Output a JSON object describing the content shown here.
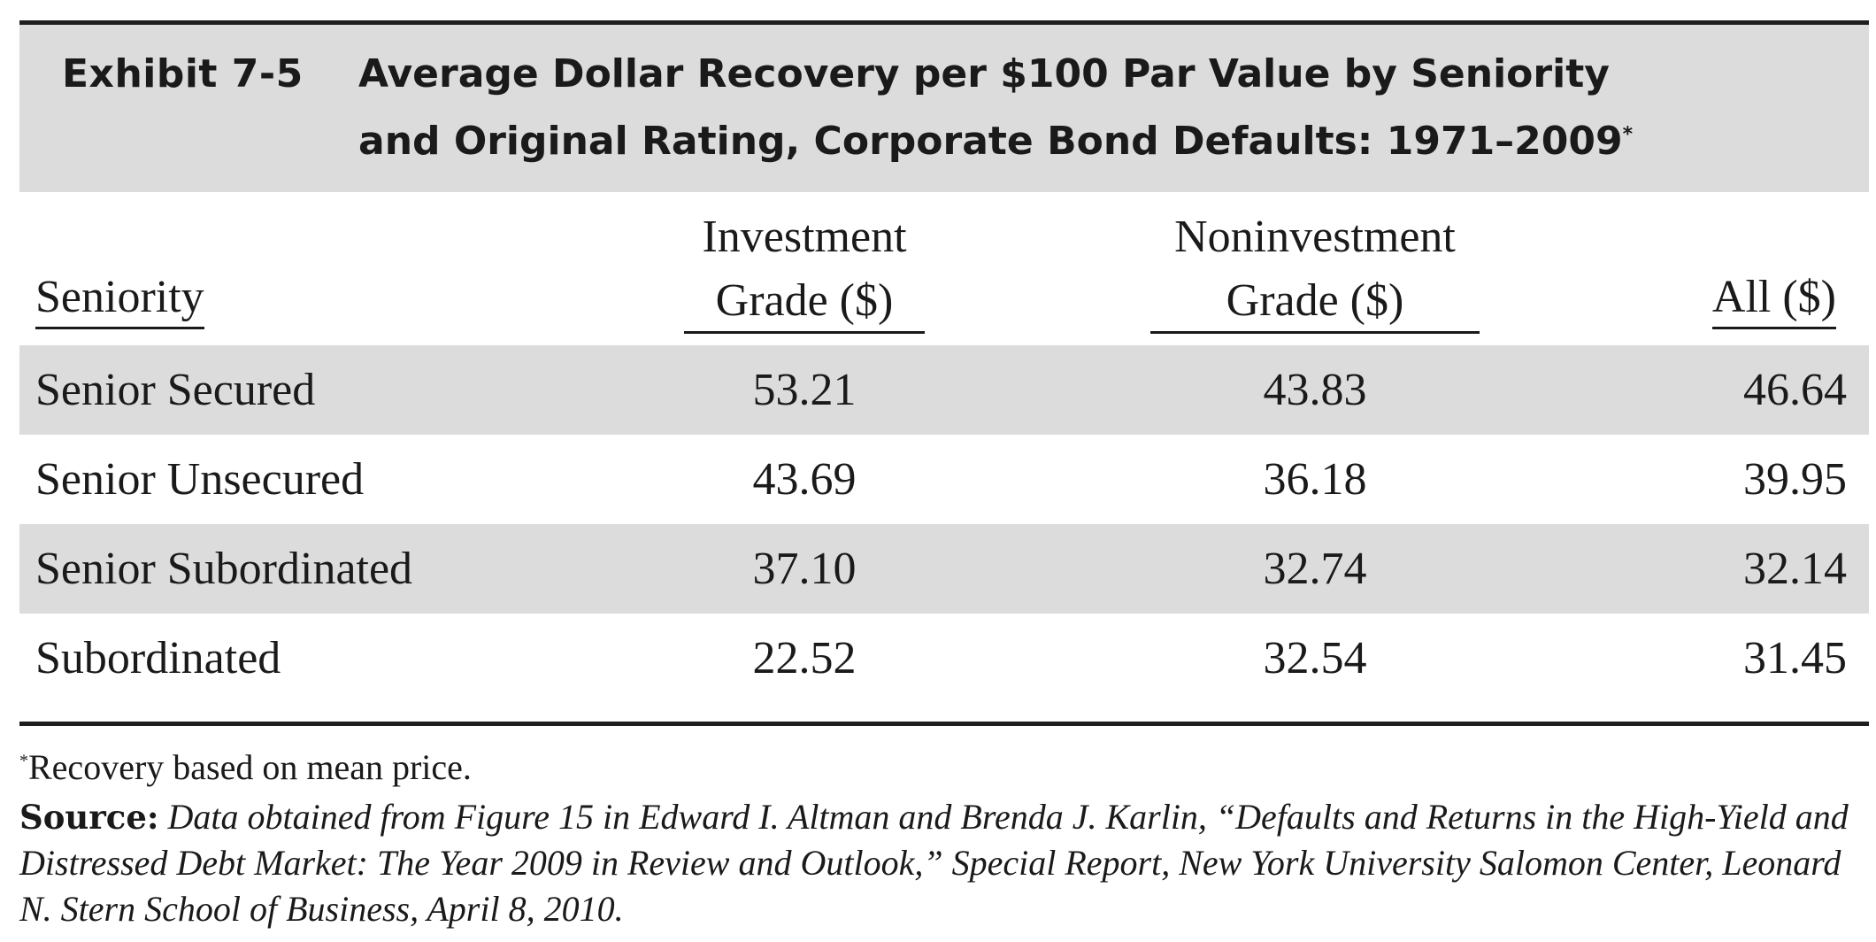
{
  "exhibit": {
    "number": "Exhibit 7-5",
    "title_line1": "Average Dollar Recovery per $100 Par Value by Seniority",
    "title_line2": "and Original Rating, Corporate Bond Defaults: 1971–2009",
    "title_marker": "*"
  },
  "table": {
    "headers": {
      "seniority": "Seniority",
      "investment_line1": "Investment",
      "investment_line2": "Grade ($)",
      "noninvestment_line1": "Noninvestment",
      "noninvestment_line2": "Grade ($)",
      "all": "All ($)"
    },
    "rows": [
      {
        "seniority": "Senior Secured",
        "investment": "53.21",
        "noninvestment": "43.83",
        "all": "46.64"
      },
      {
        "seniority": "Senior Unsecured",
        "investment": "43.69",
        "noninvestment": "36.18",
        "all": "39.95"
      },
      {
        "seniority": "Senior Subordinated",
        "investment": "37.10",
        "noninvestment": "32.74",
        "all": "32.14"
      },
      {
        "seniority": "Subordinated",
        "investment": "22.52",
        "noninvestment": "32.54",
        "all": "31.45"
      }
    ]
  },
  "footnote": {
    "marker": "*",
    "text": "Recovery based on mean price."
  },
  "source": {
    "label": "Source:",
    "text": "Data obtained from Figure 15 in Edward I. Altman and Brenda J. Karlin, “Defaults and Returns in the High-Yield and Distressed Debt Market: The Year 2009 in Review and Outlook,” Special Report, New York University Salomon Center, Leonard N. Stern School of Business, April 8, 2010."
  },
  "colors": {
    "band": "#dddcdc",
    "rule": "#1e1e1e",
    "text": "#1a1a1a"
  }
}
